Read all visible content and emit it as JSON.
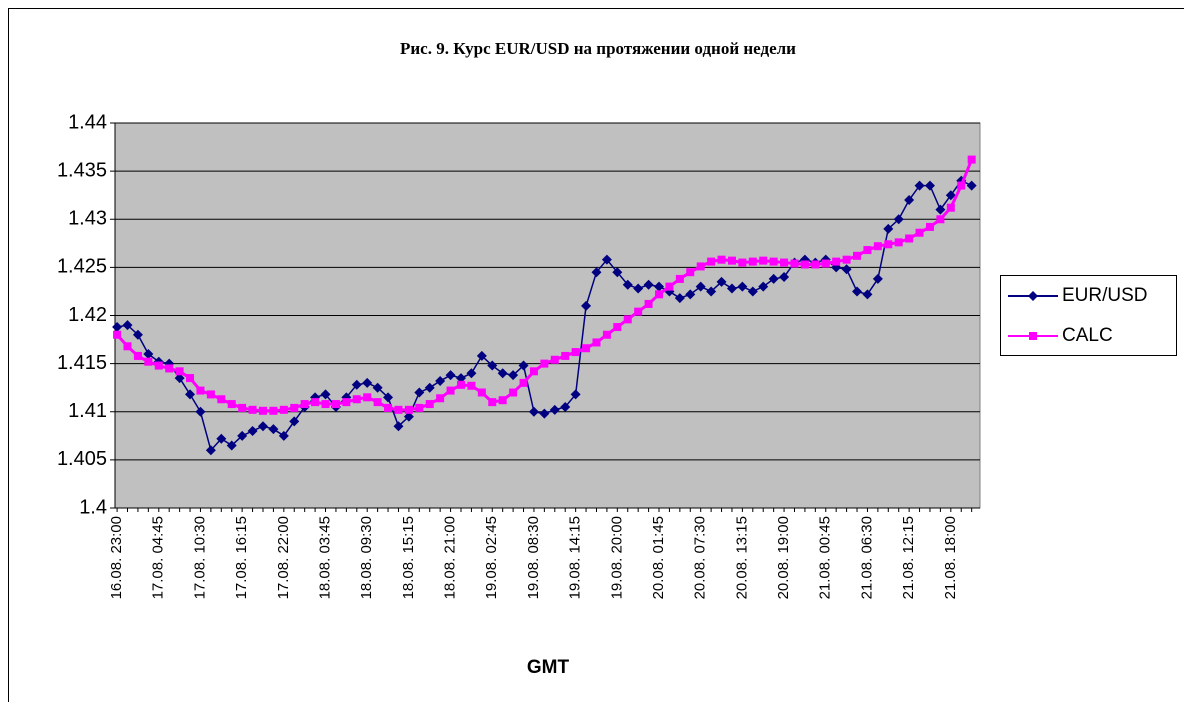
{
  "chart_data": {
    "type": "line",
    "title": "Рис. 9. Курс EUR/USD на протяжении одной недели",
    "x_label": "GMT",
    "categories": [
      "16.08. 23:00",
      null,
      null,
      null,
      "17.08. 04:45",
      null,
      null,
      null,
      "17.08. 10:30",
      null,
      null,
      null,
      "17.08. 16:15",
      null,
      null,
      null,
      "17.08. 22:00",
      null,
      null,
      null,
      "18.08. 03:45",
      null,
      null,
      null,
      "18.08. 09:30",
      null,
      null,
      null,
      "18.08. 15:15",
      null,
      null,
      null,
      "18.08. 21:00",
      null,
      null,
      null,
      "19.08. 02:45",
      null,
      null,
      null,
      "19.08. 08:30",
      null,
      null,
      null,
      "19.08. 14:15",
      null,
      null,
      null,
      "19.08. 20:00",
      null,
      null,
      null,
      "20.08. 01:45",
      null,
      null,
      null,
      "20.08. 07:30",
      null,
      null,
      null,
      "20.08. 13:15",
      null,
      null,
      null,
      "20.08. 19:00",
      null,
      null,
      null,
      "21.08. 00:45",
      null,
      null,
      null,
      "21.08. 06:30",
      null,
      null,
      null,
      "21.08. 12:15",
      null,
      null,
      null,
      "21.08. 18:00",
      null,
      null
    ],
    "series": [
      {
        "name": "EUR/USD",
        "color": "#000080",
        "marker": "diamond",
        "values": [
          1.4188,
          1.419,
          1.418,
          1.416,
          1.4152,
          1.415,
          1.4135,
          1.4118,
          1.41,
          1.406,
          1.4072,
          1.4065,
          1.4075,
          1.408,
          1.4085,
          1.4082,
          1.4075,
          1.409,
          1.4105,
          1.4115,
          1.4118,
          1.4105,
          1.4115,
          1.4128,
          1.413,
          1.4125,
          1.4115,
          1.4085,
          1.4095,
          1.412,
          1.4125,
          1.4132,
          1.4138,
          1.4135,
          1.414,
          1.4158,
          1.4148,
          1.414,
          1.4138,
          1.4148,
          1.41,
          1.4098,
          1.4102,
          1.4105,
          1.4118,
          1.421,
          1.4245,
          1.4258,
          1.4245,
          1.4232,
          1.4228,
          1.4232,
          1.423,
          1.4225,
          1.4218,
          1.4222,
          1.423,
          1.4225,
          1.4235,
          1.4228,
          1.423,
          1.4225,
          1.423,
          1.4238,
          1.424,
          1.4255,
          1.4258,
          1.4255,
          1.4258,
          1.425,
          1.4248,
          1.4225,
          1.4222,
          1.4238,
          1.429,
          1.43,
          1.432,
          1.4335,
          1.4335,
          1.431,
          1.4325,
          1.434,
          1.4335
        ]
      },
      {
        "name": "CALC",
        "color": "#ff00ff",
        "marker": "square",
        "values": [
          1.418,
          1.4168,
          1.4158,
          1.4152,
          1.4148,
          1.4145,
          1.4142,
          1.4135,
          1.4122,
          1.4118,
          1.4113,
          1.4108,
          1.4104,
          1.4102,
          1.4101,
          1.4101,
          1.4102,
          1.4104,
          1.4108,
          1.411,
          1.4108,
          1.4108,
          1.411,
          1.4113,
          1.4115,
          1.411,
          1.4104,
          1.4102,
          1.4102,
          1.4104,
          1.4108,
          1.4114,
          1.4122,
          1.4128,
          1.4127,
          1.412,
          1.411,
          1.4112,
          1.412,
          1.413,
          1.4142,
          1.415,
          1.4154,
          1.4158,
          1.4162,
          1.4166,
          1.4172,
          1.418,
          1.4188,
          1.4196,
          1.4204,
          1.4212,
          1.4222,
          1.423,
          1.4238,
          1.4245,
          1.4251,
          1.4256,
          1.4258,
          1.4257,
          1.4255,
          1.4256,
          1.4257,
          1.4256,
          1.4255,
          1.4254,
          1.4253,
          1.4253,
          1.4254,
          1.4256,
          1.4258,
          1.4262,
          1.4268,
          1.4272,
          1.4274,
          1.4276,
          1.428,
          1.4286,
          1.4292,
          1.43,
          1.4312,
          1.4335,
          1.4362
        ]
      }
    ],
    "ylim": [
      1.4,
      1.44
    ],
    "yticks": [
      1.4,
      1.405,
      1.41,
      1.415,
      1.42,
      1.425,
      1.43,
      1.435,
      1.44
    ],
    "grid": true,
    "plot_background": "#c0c0c0",
    "legend": "right"
  }
}
